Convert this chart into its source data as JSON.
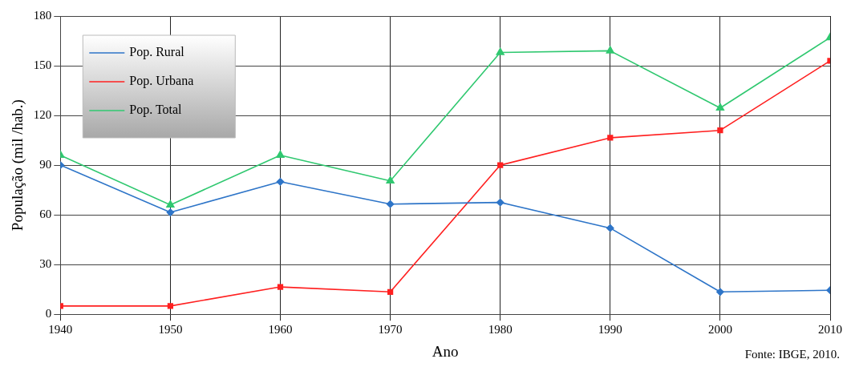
{
  "chart_data": {
    "type": "line",
    "xlabel": "Ano",
    "ylabel": "População (mil /hab.)",
    "x": [
      1940,
      1950,
      1960,
      1970,
      1980,
      1990,
      2000,
      2010
    ],
    "series": [
      {
        "name": "Pop. Rural",
        "color": "#2e75c8",
        "marker": "diamond",
        "values": [
          90,
          61.5,
          80,
          66.5,
          67.5,
          52,
          13.5,
          14.5
        ]
      },
      {
        "name": "Pop. Urbana",
        "color": "#ff2020",
        "marker": "square",
        "values": [
          5,
          5,
          16.5,
          13.5,
          90,
          106.5,
          111,
          153
        ]
      },
      {
        "name": "Pop. Total",
        "color": "#30c870",
        "marker": "triangle",
        "values": [
          96,
          66,
          96,
          80.5,
          158,
          159,
          124.5,
          167
        ]
      }
    ],
    "xlim": [
      1940,
      2010
    ],
    "xticks": [
      1940,
      1950,
      1960,
      1970,
      1980,
      1990,
      2000,
      2010
    ],
    "ylim": [
      0,
      180
    ],
    "yticks": [
      0,
      30,
      60,
      90,
      120,
      150,
      180
    ],
    "grid": true,
    "legend": "top left",
    "line_style": "solid",
    "annotations": [
      "Fonte: IBGE, 2010."
    ]
  }
}
